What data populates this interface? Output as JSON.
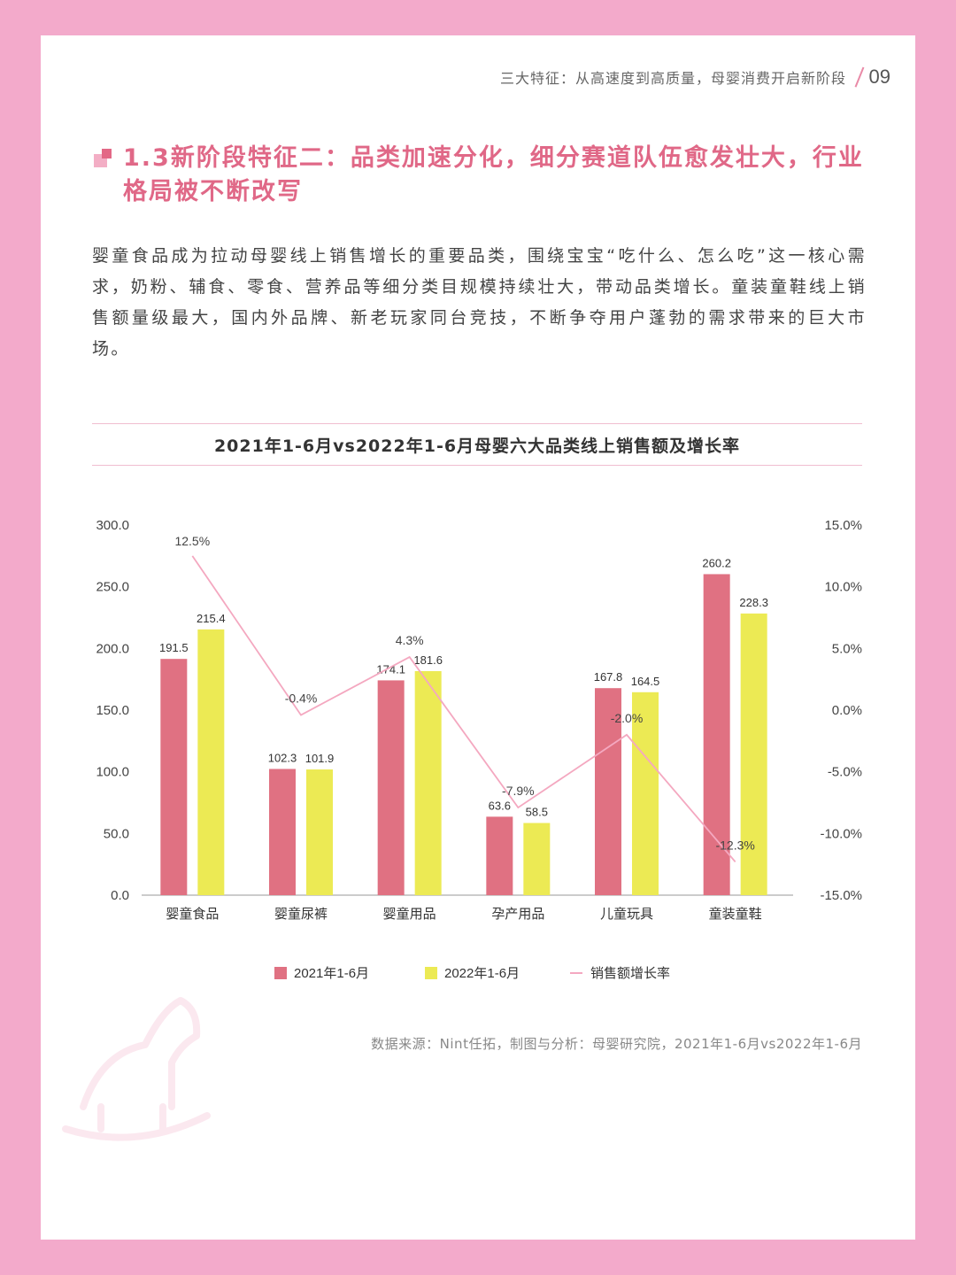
{
  "header": {
    "running_title": "三大特征：从高速度到高质量，母婴消费开启新阶段",
    "page_number": "09"
  },
  "section": {
    "title": "1.3新阶段特征二：品类加速分化，细分赛道队伍愈发壮大，行业格局被不断改写"
  },
  "body_text": "婴童食品成为拉动母婴线上销售增长的重要品类，围绕宝宝“吃什么、怎么吃”这一核心需求，奶粉、辅食、零食、营养品等细分类目规模持续壮大，带动品类增长。童装童鞋线上销售额量级最大，国内外品牌、新老玩家同台竞技，不断争夺用户蓬勃的需求带来的巨大市场。",
  "chart_data": {
    "type": "bar",
    "title": "2021年1-6月vs2022年1-6月母婴六大品类线上销售额及增长率",
    "categories": [
      "婴童食品",
      "婴童尿裤",
      "婴童用品",
      "孕产用品",
      "儿童玩具",
      "童装童鞋"
    ],
    "series": [
      {
        "name": "2021年1-6月",
        "values": [
          191.5,
          102.3,
          174.1,
          63.6,
          167.8,
          260.2
        ],
        "value_labels": [
          "191.5",
          "102.3",
          "174.1",
          "63.6",
          "167.8",
          "260.2"
        ],
        "color": "#e07182"
      },
      {
        "name": "2022年1-6月",
        "values": [
          215.4,
          101.9,
          181.6,
          58.5,
          164.5,
          228.3
        ],
        "value_labels": [
          "215.4",
          "101.9",
          "181.6",
          "58.5",
          "164.5",
          "228.3"
        ],
        "color": "#ecea54"
      }
    ],
    "line_series": {
      "name": "销售额增长率",
      "values": [
        12.5,
        -0.4,
        4.3,
        -7.9,
        -2.0,
        -12.3
      ],
      "value_labels": [
        "12.5%",
        "-0.4%",
        "4.3%",
        "-7.9%",
        "-2.0%",
        "-12.3%"
      ],
      "color": "#f4a8c0"
    },
    "ylim": [
      0,
      300
    ],
    "y_ticks": [
      "0.0",
      "50.0",
      "100.0",
      "150.0",
      "200.0",
      "250.0",
      "300.0"
    ],
    "y2lim": [
      -15,
      15
    ],
    "y2_ticks": [
      "-15.0%",
      "-10.0%",
      "-5.0%",
      "0.0%",
      "5.0%",
      "10.0%",
      "15.0%"
    ],
    "legend_position": "bottom",
    "grid": false
  },
  "source": "数据来源：Nint任拓，制图与分析：母婴研究院，2021年1-6月vs2022年1-6月"
}
